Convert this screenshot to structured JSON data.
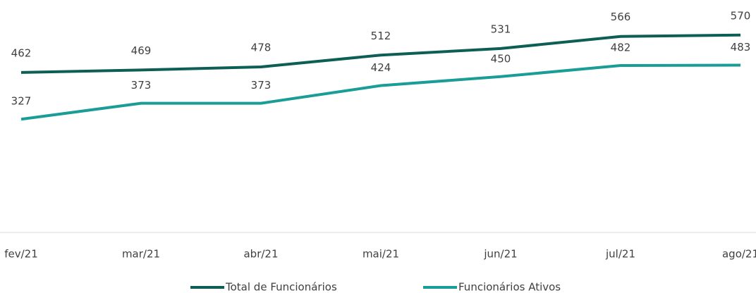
{
  "chart_data": {
    "type": "line",
    "categories": [
      "fev/21",
      "mar/21",
      "abr/21",
      "mai/21",
      "jun/21",
      "jul/21",
      "ago/21"
    ],
    "series": [
      {
        "name": "Total de Funcionários",
        "color": "#0d5f55",
        "values": [
          462,
          469,
          478,
          512,
          531,
          566,
          570
        ]
      },
      {
        "name": "Funcionários Ativos",
        "color": "#1a9d96",
        "values": [
          327,
          373,
          373,
          424,
          450,
          482,
          483
        ]
      }
    ],
    "ylim": [
      0,
      600
    ]
  }
}
